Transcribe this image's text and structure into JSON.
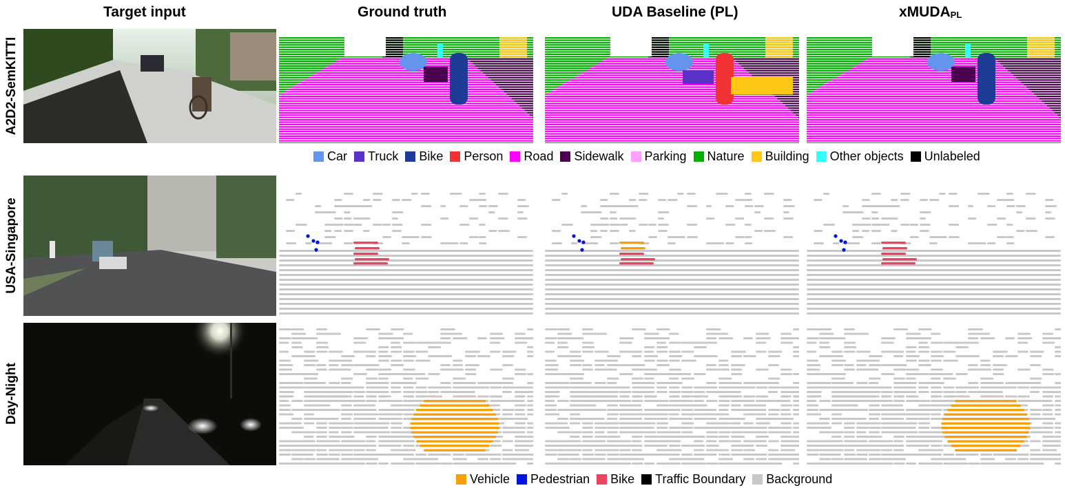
{
  "columns": [
    "Target input",
    "Ground truth",
    "UDA Baseline (PL)",
    "xMUDA"
  ],
  "columns_sub": {
    "xmuda": "PL"
  },
  "rows": [
    "A2D2-SemKITTI",
    "USA-Singapore",
    "Day-Night"
  ],
  "legend_top": [
    {
      "label": "Car",
      "color": "#6495ed"
    },
    {
      "label": "Truck",
      "color": "#5a32c8"
    },
    {
      "label": "Bike",
      "color": "#1e3c96"
    },
    {
      "label": "Person",
      "color": "#f03232"
    },
    {
      "label": "Road",
      "color": "#ff00ff"
    },
    {
      "label": "Sidewalk",
      "color": "#4b0050"
    },
    {
      "label": "Parking",
      "color": "#ffa0ff"
    },
    {
      "label": "Nature",
      "color": "#00af00"
    },
    {
      "label": "Building",
      "color": "#ffc814"
    },
    {
      "label": "Other objects",
      "color": "#32ffff"
    },
    {
      "label": "Unlabeled",
      "color": "#000000"
    }
  ],
  "legend_bottom": [
    {
      "label": "Vehicle",
      "color": "#f5a00a"
    },
    {
      "label": "Pedestrian",
      "color": "#0014dc"
    },
    {
      "label": "Bike",
      "color": "#e6465f"
    },
    {
      "label": "Traffic Boundary",
      "color": "#000000"
    },
    {
      "label": "Background",
      "color": "#c8c8c8"
    }
  ]
}
